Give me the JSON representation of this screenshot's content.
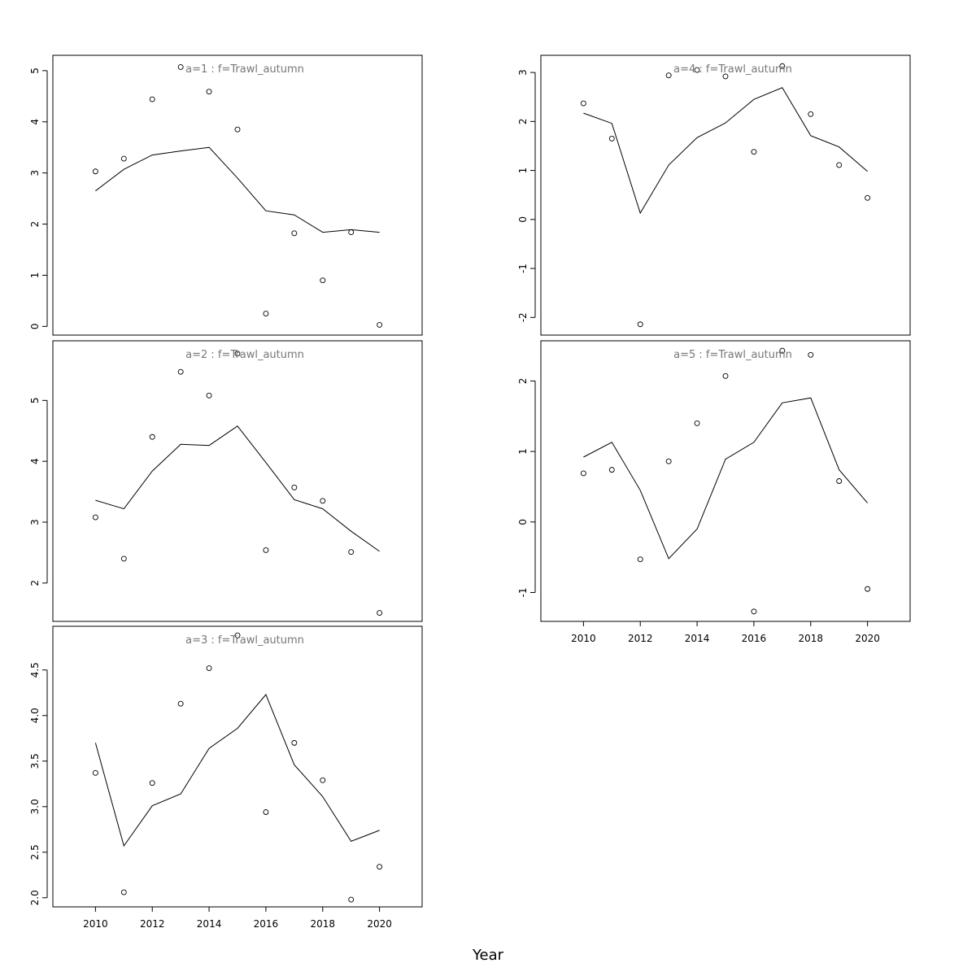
{
  "figure": {
    "xlabel": "Year"
  },
  "chart_data": [
    {
      "type": "scatter+line",
      "title": "a=1 : f=Trawl_autumn",
      "x": [
        2010,
        2011,
        2012,
        2013,
        2014,
        2015,
        2016,
        2017,
        2018,
        2019,
        2020
      ],
      "points": [
        3.03,
        3.28,
        4.44,
        5.07,
        4.59,
        3.85,
        0.25,
        1.82,
        0.9,
        1.84,
        0.03
      ],
      "line": [
        2.65,
        3.07,
        3.35,
        3.43,
        3.5,
        2.9,
        2.26,
        2.18,
        1.84,
        1.89,
        1.84
      ],
      "xlim": [
        2008.5,
        2021.5
      ],
      "ylim": [
        -0.17,
        5.3
      ],
      "yticks": [
        "0",
        "1",
        "2",
        "3",
        "4",
        "5"
      ],
      "xticks": [],
      "grid": false
    },
    {
      "type": "scatter+line",
      "title": "a=2 : f=Trawl_autumn",
      "x": [
        2010,
        2011,
        2012,
        2013,
        2014,
        2015,
        2016,
        2017,
        2018,
        2019,
        2020
      ],
      "points": [
        3.08,
        2.4,
        4.4,
        5.47,
        5.08,
        5.77,
        2.54,
        3.57,
        3.35,
        2.51,
        1.51
      ],
      "line": [
        3.36,
        3.22,
        3.84,
        4.28,
        4.26,
        4.58,
        3.98,
        3.37,
        3.22,
        2.85,
        2.52
      ],
      "xlim": [
        2008.5,
        2021.5
      ],
      "ylim": [
        1.37,
        5.98
      ],
      "yticks": [
        "2",
        "3",
        "4",
        "5"
      ],
      "xticks": [],
      "grid": false
    },
    {
      "type": "scatter+line",
      "title": "a=3 : f=Trawl_autumn",
      "x": [
        2010,
        2011,
        2012,
        2013,
        2014,
        2015,
        2016,
        2017,
        2018,
        2019,
        2020
      ],
      "points": [
        3.37,
        2.06,
        3.26,
        4.13,
        4.52,
        4.88,
        2.94,
        3.7,
        3.29,
        1.98,
        2.34
      ],
      "line": [
        3.7,
        2.57,
        3.01,
        3.14,
        3.64,
        3.86,
        4.23,
        3.46,
        3.11,
        2.62,
        2.74
      ],
      "xlim": [
        2008.5,
        2021.5
      ],
      "ylim": [
        1.9,
        4.98
      ],
      "yticks": [
        "2.0",
        "2.5",
        "3.0",
        "3.5",
        "4.0",
        "4.5"
      ],
      "xticks": [
        "2010",
        "2012",
        "2014",
        "2016",
        "2018",
        "2020"
      ],
      "grid": false
    },
    {
      "type": "scatter+line",
      "title": "a=4 : f=Trawl_autumn",
      "x": [
        2010,
        2011,
        2012,
        2013,
        2014,
        2015,
        2016,
        2017,
        2018,
        2019,
        2020
      ],
      "points": [
        2.37,
        1.65,
        -2.14,
        2.94,
        3.05,
        2.92,
        1.38,
        3.13,
        2.15,
        1.11,
        0.44
      ],
      "line": [
        2.17,
        1.96,
        0.13,
        1.11,
        1.67,
        1.97,
        2.45,
        2.69,
        1.71,
        1.48,
        0.98
      ],
      "xlim": [
        2008.5,
        2021.5
      ],
      "ylim": [
        -2.36,
        3.35
      ],
      "yticks": [
        "-2",
        "-1",
        "0",
        "1",
        "2",
        "3"
      ],
      "xticks": [],
      "grid": false
    },
    {
      "type": "scatter+line",
      "title": "a=5 : f=Trawl_autumn",
      "x": [
        2010,
        2011,
        2012,
        2013,
        2014,
        2015,
        2016,
        2017,
        2018,
        2019,
        2020
      ],
      "points": [
        0.69,
        0.74,
        -0.53,
        0.86,
        1.4,
        2.07,
        -1.27,
        2.43,
        2.37,
        0.58,
        -0.95
      ],
      "line": [
        0.92,
        1.13,
        0.45,
        -0.52,
        -0.1,
        0.89,
        1.13,
        1.69,
        1.76,
        0.74,
        0.27
      ],
      "xlim": [
        2008.5,
        2021.5
      ],
      "ylim": [
        -1.41,
        2.57
      ],
      "yticks": [
        "-1",
        "0",
        "1",
        "2"
      ],
      "xticks": [
        "2010",
        "2012",
        "2014",
        "2016",
        "2018",
        "2020"
      ],
      "grid": false
    }
  ]
}
